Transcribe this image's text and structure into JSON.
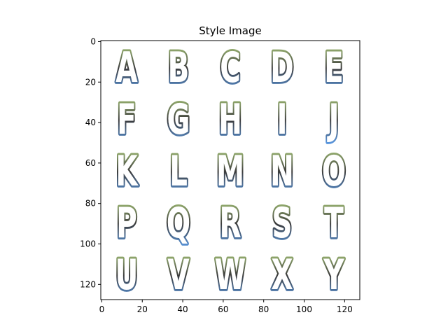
{
  "chart_data": {
    "type": "image",
    "title": "Style Image",
    "xlabel": "",
    "ylabel": "",
    "image_size": [
      128,
      128
    ],
    "xlim": [
      0,
      128
    ],
    "ylim": [
      128,
      0
    ],
    "x_ticks": [
      0,
      20,
      40,
      60,
      80,
      100,
      120
    ],
    "y_ticks": [
      0,
      20,
      40,
      60,
      80,
      100,
      120
    ],
    "grid": false,
    "glyph_rows": [
      [
        "A",
        "B",
        "C",
        "D",
        "E"
      ],
      [
        "F",
        "G",
        "H",
        "I",
        "J"
      ],
      [
        "K",
        "L",
        "M",
        "N",
        "O"
      ],
      [
        "P",
        "Q",
        "R",
        "S",
        "T"
      ],
      [
        "U",
        "V",
        "W",
        "X",
        "Y"
      ]
    ],
    "colors": {
      "glyph_fill": "#ffffff",
      "outline_dark": "#3a3a3a",
      "gradient_top": "#a8c77a",
      "gradient_bottom": "#5b9be6",
      "axes": "#000000",
      "background": "#ffffff"
    }
  }
}
